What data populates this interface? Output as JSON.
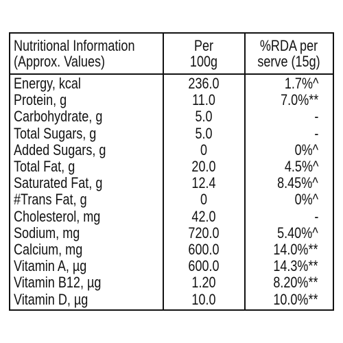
{
  "table": {
    "header": [
      [
        "Nutritional Information",
        "(Approx. Values)"
      ],
      [
        "Per",
        "100g"
      ],
      [
        "%RDA per",
        "serve (15g)"
      ]
    ],
    "rows": [
      [
        "Energy, kcal",
        "236.0",
        "1.7%^"
      ],
      [
        "Protein, g",
        "11.0",
        "7.0%**"
      ],
      [
        "Carbohydrate, g",
        "5.0",
        "-"
      ],
      [
        "Total Sugars, g",
        "5.0",
        "-"
      ],
      [
        "Added Sugars, g",
        "0",
        "0%^"
      ],
      [
        "Total Fat, g",
        "20.0",
        "4.5%^"
      ],
      [
        "Saturated Fat, g",
        "12.4",
        "8.45%^"
      ],
      [
        "#Trans Fat, g",
        "0",
        "0%^"
      ],
      [
        "Cholesterol, mg",
        "42.0",
        "-"
      ],
      [
        "Sodium, mg",
        "720.0",
        "5.40%^"
      ],
      [
        "Calcium, mg",
        "600.0",
        "14.0%**"
      ],
      [
        "Vitamin A, µg",
        "600.0",
        "14.3%**"
      ],
      [
        "Vitamin B12, µg",
        "1.20",
        "8.20%**"
      ],
      [
        "Vitamin D, µg",
        "10.0",
        "10.0%**"
      ]
    ]
  }
}
